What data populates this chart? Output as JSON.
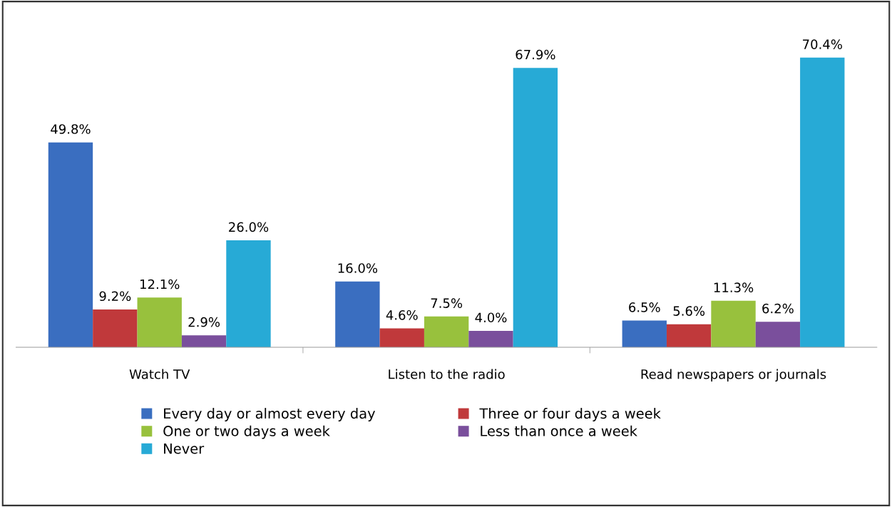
{
  "chart_data": {
    "type": "bar",
    "categories": [
      "Watch TV",
      "Listen to the radio",
      "Read newspapers or journals"
    ],
    "series": [
      {
        "name": "Every day or almost every day",
        "color": "#3a6ec0",
        "values": [
          49.8,
          16.0,
          6.5
        ],
        "value_labels": [
          "49.8%",
          "16.0%",
          "6.5%"
        ]
      },
      {
        "name": "Three or four days a week",
        "color": "#c0393b",
        "values": [
          9.2,
          4.6,
          5.6
        ],
        "value_labels": [
          "9.2%",
          "4.6%",
          "5.6%"
        ]
      },
      {
        "name": "One or two days a week",
        "color": "#98c13d",
        "values": [
          12.1,
          7.5,
          11.3
        ],
        "value_labels": [
          "12.1%",
          "7.5%",
          "11.3%"
        ]
      },
      {
        "name": "Less than once a week",
        "color": "#7a4f9c",
        "values": [
          2.9,
          4.0,
          6.2
        ],
        "value_labels": [
          "2.9%",
          "4.0%",
          "6.2%"
        ]
      },
      {
        "name": "Never",
        "color": "#27aad6",
        "values": [
          26.0,
          67.9,
          70.4
        ],
        "value_labels": [
          "26.0%",
          "67.9%",
          "70.4%"
        ]
      }
    ],
    "legend": "bottom"
  }
}
